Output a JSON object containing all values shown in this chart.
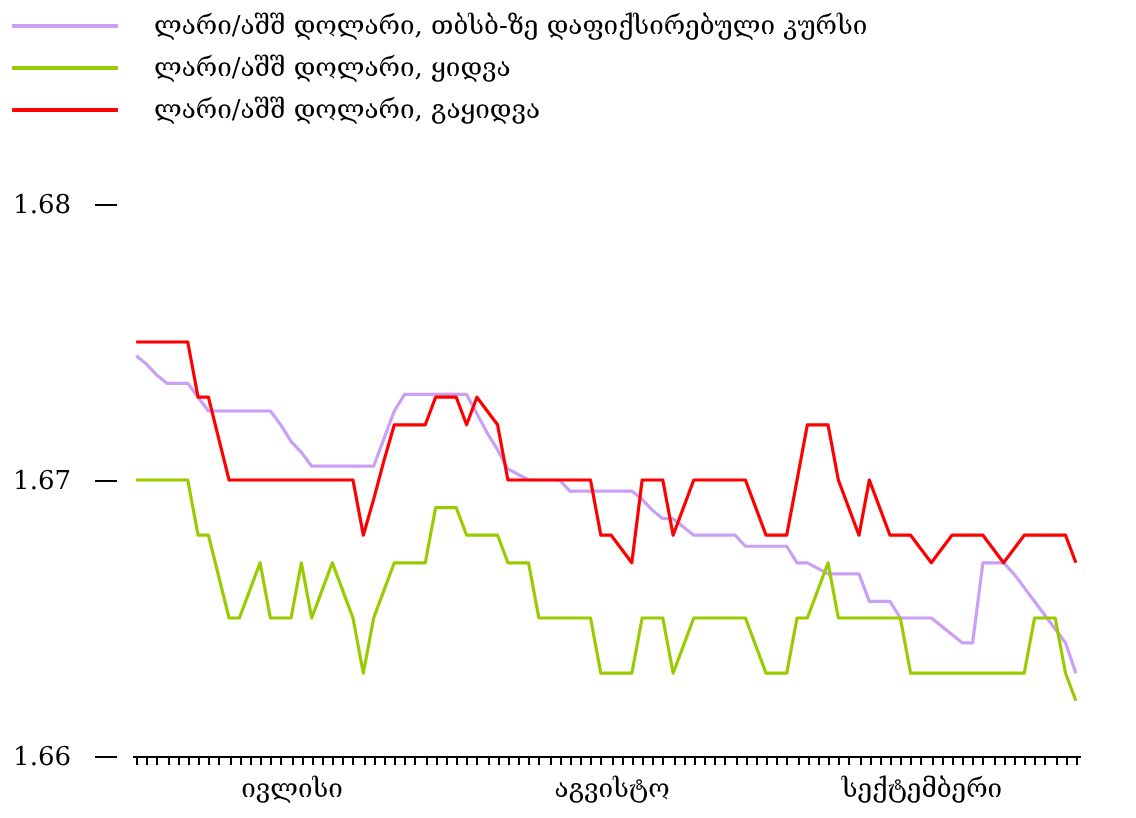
{
  "chart_data": {
    "type": "line",
    "ylim": [
      1.66,
      1.68
    ],
    "yticks": [
      1.66,
      1.67,
      1.68
    ],
    "categories": [
      null,
      null,
      null,
      null,
      null,
      null,
      null,
      null,
      null,
      null,
      null,
      null,
      null,
      null,
      null,
      "ივლისი",
      null,
      null,
      null,
      null,
      null,
      null,
      null,
      null,
      null,
      null,
      null,
      null,
      null,
      null,
      null,
      null,
      null,
      null,
      null,
      null,
      null,
      null,
      null,
      null,
      null,
      null,
      null,
      null,
      null,
      null,
      "აგვისტო",
      null,
      null,
      null,
      null,
      null,
      null,
      null,
      null,
      null,
      null,
      null,
      null,
      null,
      null,
      null,
      null,
      null,
      null,
      null,
      null,
      null,
      null,
      null,
      null,
      null,
      null,
      null,
      null,
      null,
      "სექტემბერი",
      null,
      null,
      null,
      null,
      null,
      null,
      null,
      null,
      null,
      null,
      null,
      null,
      null,
      null,
      null
    ],
    "grid": false,
    "legend": "top left",
    "line_style": "solid",
    "series": [
      {
        "name": "ლარი/აშშ დოლარი, თბსბ-ზე დაფიქსირებული კურსი",
        "color": "#c9a0f5",
        "values": [
          1.6745,
          1.6742,
          1.6738,
          1.6735,
          1.6735,
          1.6735,
          1.673,
          1.6725,
          1.6725,
          1.6725,
          1.6725,
          1.6725,
          1.6725,
          1.6725,
          1.672,
          1.6714,
          1.671,
          1.6705,
          1.6705,
          1.6705,
          1.6705,
          1.6705,
          1.6705,
          1.6705,
          1.6715,
          1.6725,
          1.6731,
          1.6731,
          1.6731,
          1.6731,
          1.6731,
          1.6731,
          1.6731,
          1.6724,
          1.6717,
          1.6711,
          1.6704,
          1.6702,
          1.67,
          1.67,
          1.67,
          1.67,
          1.6696,
          1.6696,
          1.6696,
          1.6696,
          1.6696,
          1.6696,
          1.6696,
          1.6693,
          1.6689,
          1.6686,
          1.6686,
          1.6683,
          1.668,
          1.668,
          1.668,
          1.668,
          1.668,
          1.6676,
          1.6676,
          1.6676,
          1.6676,
          1.6676,
          1.667,
          1.667,
          1.6668,
          1.6666,
          1.6666,
          1.6666,
          1.6666,
          1.6656,
          1.6656,
          1.6656,
          1.665,
          1.665,
          1.665,
          1.665,
          1.6647,
          1.6644,
          1.6641,
          1.6641,
          1.667,
          1.667,
          1.667,
          1.6666,
          1.6661,
          1.6656,
          1.6651,
          1.6646,
          1.6641,
          1.663
        ]
      },
      {
        "name": "ლარი/აშშ დოლარი, ყიდვა",
        "color": "#99cc00",
        "values": [
          1.67,
          1.67,
          1.67,
          1.67,
          1.67,
          1.67,
          1.668,
          1.668,
          1.6665,
          1.665,
          1.665,
          1.666,
          1.667,
          1.665,
          1.665,
          1.665,
          1.667,
          1.665,
          1.666,
          1.667,
          1.666,
          1.665,
          1.663,
          1.665,
          1.666,
          1.667,
          1.667,
          1.667,
          1.667,
          1.669,
          1.669,
          1.669,
          1.668,
          1.668,
          1.668,
          1.668,
          1.667,
          1.667,
          1.667,
          1.665,
          1.665,
          1.665,
          1.665,
          1.665,
          1.665,
          1.663,
          1.663,
          1.663,
          1.663,
          1.665,
          1.665,
          1.665,
          1.663,
          1.664,
          1.665,
          1.665,
          1.665,
          1.665,
          1.665,
          1.665,
          1.664,
          1.663,
          1.663,
          1.663,
          1.665,
          1.665,
          1.666,
          1.667,
          1.665,
          1.665,
          1.665,
          1.665,
          1.665,
          1.665,
          1.665,
          1.663,
          1.663,
          1.663,
          1.663,
          1.663,
          1.663,
          1.663,
          1.663,
          1.663,
          1.663,
          1.663,
          1.663,
          1.665,
          1.665,
          1.665,
          1.663,
          1.662
        ]
      },
      {
        "name": "ლარი/აშშ დოლარი, გაყიდვა",
        "color": "#ff0000",
        "values": [
          1.675,
          1.675,
          1.675,
          1.675,
          1.675,
          1.675,
          1.673,
          1.673,
          1.6715,
          1.67,
          1.67,
          1.67,
          1.67,
          1.67,
          1.67,
          1.67,
          1.67,
          1.67,
          1.67,
          1.67,
          1.67,
          1.67,
          1.668,
          1.6693,
          1.6707,
          1.672,
          1.672,
          1.672,
          1.672,
          1.673,
          1.673,
          1.673,
          1.672,
          1.673,
          1.6725,
          1.672,
          1.67,
          1.67,
          1.67,
          1.67,
          1.67,
          1.67,
          1.67,
          1.67,
          1.67,
          1.668,
          1.668,
          1.6675,
          1.667,
          1.67,
          1.67,
          1.67,
          1.668,
          1.669,
          1.67,
          1.67,
          1.67,
          1.67,
          1.67,
          1.67,
          1.669,
          1.668,
          1.668,
          1.668,
          1.67,
          1.672,
          1.672,
          1.672,
          1.67,
          1.669,
          1.668,
          1.67,
          1.669,
          1.668,
          1.668,
          1.668,
          1.6675,
          1.667,
          1.6675,
          1.668,
          1.668,
          1.668,
          1.668,
          1.6675,
          1.667,
          1.6675,
          1.668,
          1.668,
          1.668,
          1.668,
          1.668,
          1.667
        ]
      }
    ]
  }
}
